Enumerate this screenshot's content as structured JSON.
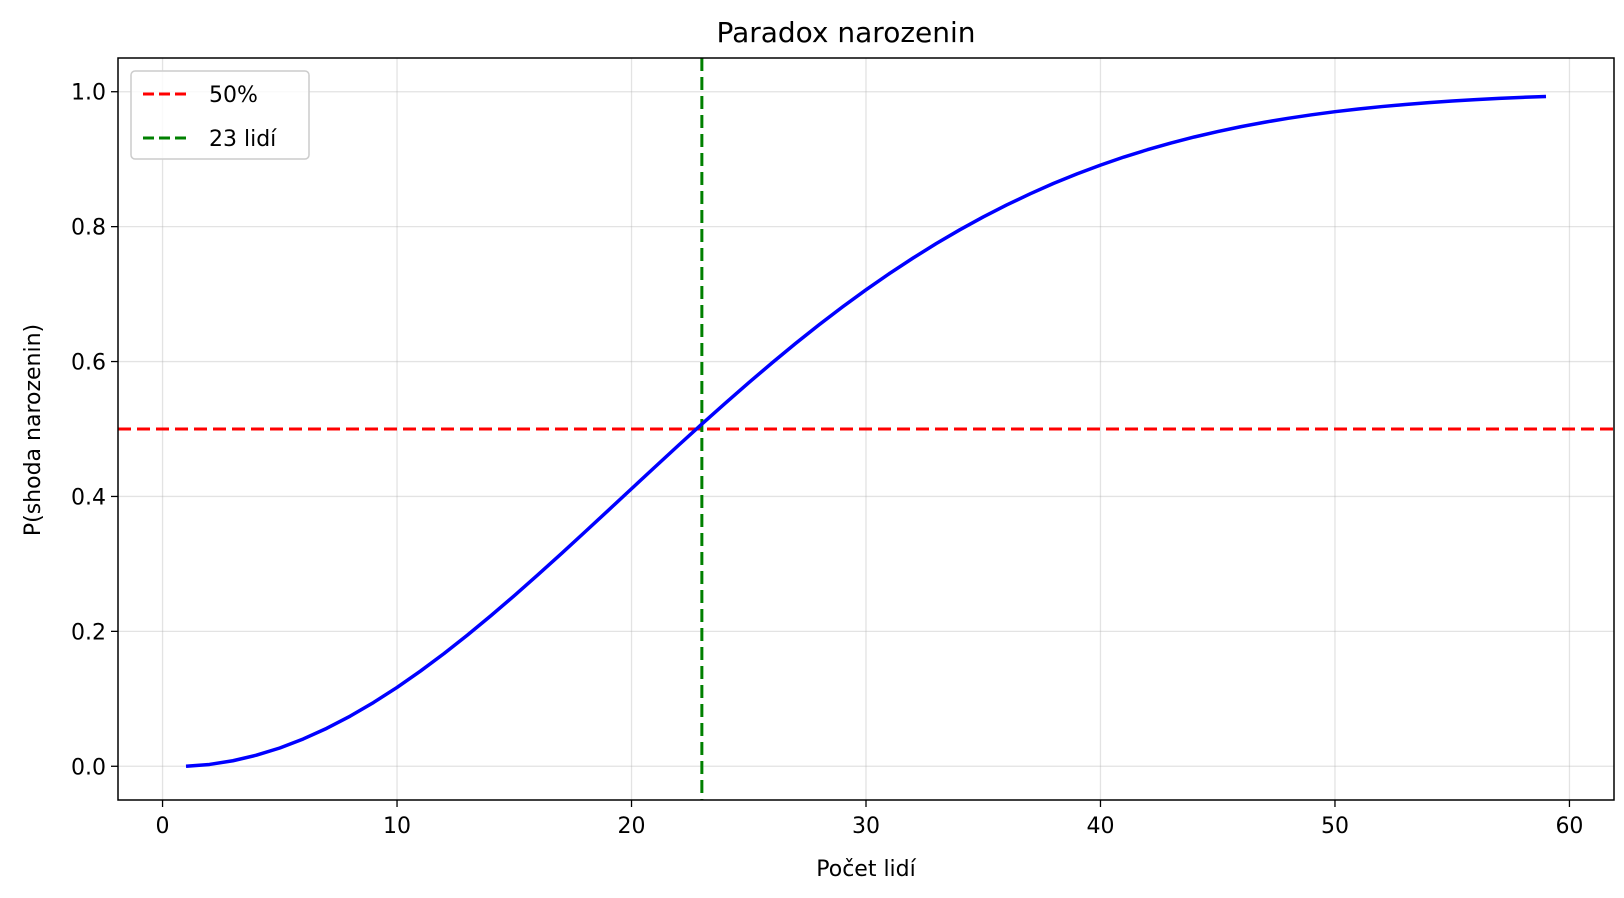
{
  "chart_data": {
    "type": "line",
    "title": "Paradox narozenin",
    "xlabel": "Počet lidí",
    "ylabel": "P(shoda narozenin)",
    "xlim": [
      -1.9,
      61.9
    ],
    "ylim": [
      -0.05,
      1.05
    ],
    "xticks": [
      0,
      10,
      20,
      30,
      40,
      50,
      60
    ],
    "xtick_labels": [
      "0",
      "10",
      "20",
      "30",
      "40",
      "50",
      "60"
    ],
    "yticks": [
      0.0,
      0.2,
      0.4,
      0.6,
      0.8,
      1.0
    ],
    "ytick_labels": [
      "0.0",
      "0.2",
      "0.4",
      "0.6",
      "0.8",
      "1.0"
    ],
    "grid": true,
    "legend_position": "upper-left",
    "series": [
      {
        "color": "#0000ff",
        "style": "solid",
        "x": [
          1,
          2,
          3,
          4,
          5,
          6,
          7,
          8,
          9,
          10,
          11,
          12,
          13,
          14,
          15,
          16,
          17,
          18,
          19,
          20,
          21,
          22,
          23,
          24,
          25,
          26,
          27,
          28,
          29,
          30,
          31,
          32,
          33,
          34,
          35,
          36,
          37,
          38,
          39,
          40,
          41,
          42,
          43,
          44,
          45,
          46,
          47,
          48,
          49,
          50,
          51,
          52,
          53,
          54,
          55,
          56,
          57,
          58,
          59
        ],
        "y": [
          0.0,
          0.0027,
          0.0082,
          0.0164,
          0.0271,
          0.0405,
          0.0562,
          0.0743,
          0.0946,
          0.1169,
          0.1411,
          0.167,
          0.1944,
          0.2231,
          0.2529,
          0.2836,
          0.315,
          0.3469,
          0.3791,
          0.4114,
          0.4437,
          0.4757,
          0.5073,
          0.5383,
          0.5687,
          0.5982,
          0.6269,
          0.6545,
          0.681,
          0.7063,
          0.7305,
          0.7533,
          0.775,
          0.7953,
          0.8144,
          0.8322,
          0.8487,
          0.8641,
          0.8782,
          0.8912,
          0.9032,
          0.914,
          0.9239,
          0.9329,
          0.941,
          0.9483,
          0.9548,
          0.9606,
          0.9658,
          0.9704,
          0.9744,
          0.978,
          0.9811,
          0.9839,
          0.9863,
          0.9883,
          0.9901,
          0.9917,
          0.993
        ]
      }
    ],
    "reference_lines": [
      {
        "orientation": "horizontal",
        "value": 0.5,
        "name": "50%",
        "color": "#ff0000",
        "style": "dashed"
      },
      {
        "orientation": "vertical",
        "value": 23,
        "name": "23 lidí",
        "color": "#008000",
        "style": "dashed"
      }
    ]
  }
}
